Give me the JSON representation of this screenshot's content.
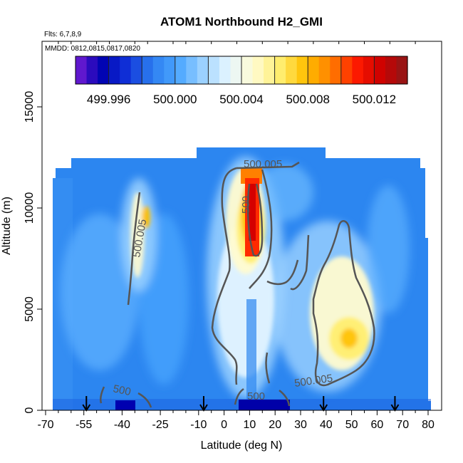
{
  "chart_data": {
    "type": "heatmap",
    "title": "ATOM1 Northbound H2_GMI",
    "annotations": [
      "Flts: 6,7,8,9",
      "MMDD: 0812,0815,0817,0820"
    ],
    "xlabel": "Latitude (deg N)",
    "ylabel": "Altitude (m)",
    "xlim": [
      -70,
      80
    ],
    "ylim": [
      0,
      17500
    ],
    "x_ticks": [
      -70,
      -55,
      -40,
      -25,
      -10,
      0,
      10,
      20,
      30,
      40,
      50,
      60,
      70,
      80
    ],
    "x_minor_ticks": [
      -65,
      -60,
      -50,
      -45,
      -35,
      -30,
      -20,
      -15,
      -5,
      5,
      15,
      25,
      35,
      45,
      55,
      65,
      75
    ],
    "y_ticks": [
      0,
      5000,
      10000,
      15000
    ],
    "colorbar": {
      "range": [
        499.994,
        500.014
      ],
      "tick_values": [
        499.996,
        500.0,
        500.004,
        500.008,
        500.012
      ],
      "tick_labels": [
        "499.996",
        "500.000",
        "500.004",
        "500.008",
        "500.012"
      ],
      "color_stops": [
        "#7b1fd6",
        "#0000b0",
        "#1030d8",
        "#2c7ef0",
        "#4aa6ff",
        "#9cd2ff",
        "#e6f6ff",
        "#fffbd0",
        "#ffee70",
        "#ffc000",
        "#ff8000",
        "#ff1a00",
        "#cc0000",
        "#8b1a1a"
      ]
    },
    "contours": [
      {
        "level": "500.005"
      },
      {
        "level": "500.005"
      },
      {
        "level": "500.005"
      },
      {
        "level": "500"
      },
      {
        "level": "500"
      },
      {
        "level": "500"
      }
    ],
    "flight_markers_lat": [
      -54,
      -8,
      39,
      67
    ],
    "colors": {
      "background_field": "#2c86f0",
      "high": "#ff1a00",
      "low": "#0000b0",
      "contour": "#555555"
    }
  }
}
